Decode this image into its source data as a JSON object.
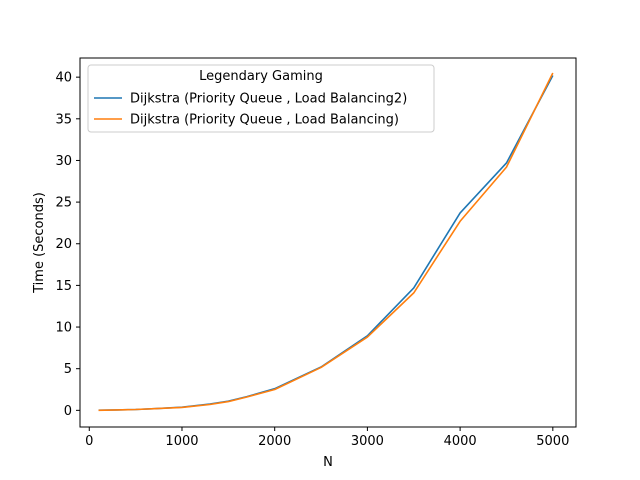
{
  "chart_data": {
    "type": "line",
    "title": "",
    "xlabel": "N",
    "ylabel": "Time (Seconds)",
    "xlim": [
      -100,
      5250
    ],
    "ylim": [
      -2.0,
      42.3
    ],
    "xticks": [
      0,
      1000,
      2000,
      3000,
      4000,
      5000
    ],
    "xtick_labels": [
      "0",
      "1000",
      "2000",
      "3000",
      "4000",
      "5000"
    ],
    "yticks": [
      0,
      5,
      10,
      15,
      20,
      25,
      30,
      35,
      40
    ],
    "ytick_labels": [
      "0",
      "5",
      "10",
      "15",
      "20",
      "25",
      "30",
      "35",
      "40"
    ],
    "grid": false,
    "legend": {
      "title": "Legendary Gaming",
      "position": "top-left"
    },
    "series": [
      {
        "name": "Dijkstra (Priority Queue , Load Balancing2)",
        "color": "#1f77b4",
        "x": [
          100,
          300,
          500,
          700,
          1000,
          1300,
          1500,
          1700,
          2000,
          2500,
          3000,
          3500,
          4000,
          4500,
          5000
        ],
        "y": [
          0.02,
          0.05,
          0.1,
          0.2,
          0.38,
          0.75,
          1.1,
          1.65,
          2.6,
          5.2,
          8.95,
          14.7,
          23.7,
          29.7,
          40.2
        ]
      },
      {
        "name": "Dijkstra (Priority Queue , Load Balancing)",
        "color": "#ff7f0e",
        "x": [
          100,
          300,
          500,
          700,
          1000,
          1300,
          1500,
          1700,
          2000,
          2500,
          3000,
          3500,
          4000,
          4500,
          5000
        ],
        "y": [
          0.0,
          0.05,
          0.1,
          0.2,
          0.35,
          0.7,
          1.05,
          1.6,
          2.5,
          5.15,
          8.8,
          14.1,
          22.7,
          29.2,
          40.5
        ]
      }
    ]
  }
}
